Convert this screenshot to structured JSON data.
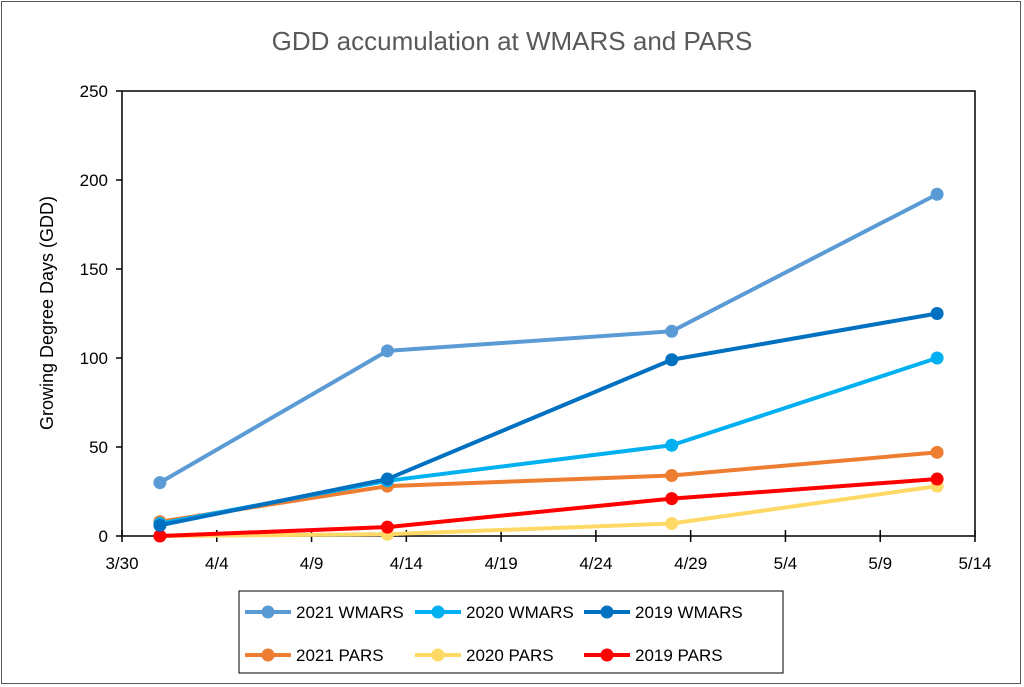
{
  "chart_data": {
    "type": "line",
    "title": "GDD accumulation at WMARS and PARS",
    "xlabel": "",
    "ylabel": "Growing Degree Days (GDD)",
    "ylim": [
      0,
      250
    ],
    "yticks": [
      0,
      50,
      100,
      150,
      200,
      250
    ],
    "xlim_days_from_3_30": [
      0,
      45
    ],
    "xticks": [
      "3/30",
      "4/4",
      "4/9",
      "4/14",
      "4/19",
      "4/24",
      "4/29",
      "5/4",
      "5/9",
      "5/14"
    ],
    "x": [
      "4/1",
      "4/13",
      "4/28",
      "5/12"
    ],
    "x_days_from_3_30": [
      2,
      14,
      29,
      43
    ],
    "grid": false,
    "legend_position": "bottom",
    "series": [
      {
        "name": "2021 WMARS",
        "color": "#5B9BD5",
        "values": [
          30,
          104,
          115,
          192
        ]
      },
      {
        "name": "2020 WMARS",
        "color": "#00B0F0",
        "values": [
          7,
          31,
          51,
          100
        ]
      },
      {
        "name": "2019 WMARS",
        "color": "#0070C0",
        "values": [
          6,
          32,
          99,
          125
        ]
      },
      {
        "name": "2021 PARS",
        "color": "#ED7D31",
        "values": [
          8,
          28,
          34,
          47
        ]
      },
      {
        "name": "2020 PARS",
        "color": "#FFD966",
        "values": [
          0,
          1,
          7,
          28
        ]
      },
      {
        "name": "2019 PARS",
        "color": "#FF0000",
        "values": [
          0,
          5,
          21,
          32
        ]
      }
    ]
  }
}
